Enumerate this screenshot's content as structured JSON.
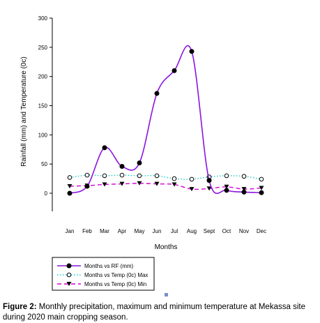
{
  "chart_data": {
    "type": "line",
    "categories": [
      "Jan",
      "Feb",
      "Mar",
      "Apr",
      "May",
      "Jun",
      "Jul",
      "Aug",
      "Sept",
      "Oct",
      "Nov",
      "Dec"
    ],
    "xlabel": "Months",
    "ylabel": "Rainfall (mm) and Temperature (0c)",
    "ylim": [
      0,
      300
    ],
    "yticks": [
      0,
      50,
      100,
      150,
      200,
      250,
      300
    ],
    "grid": false,
    "legend_position": "bottom-left",
    "series": [
      {
        "name": "Months vs RF (mm)",
        "color": "#8a14e0",
        "dash": "solid",
        "marker": "filled-circle",
        "values": [
          0,
          12,
          78,
          46,
          52,
          171,
          210,
          243,
          22,
          5,
          2,
          1
        ]
      },
      {
        "name": "Months vs Temp (0c) Max",
        "color": "#1fc7c7",
        "dash": "dotted",
        "marker": "open-circle",
        "values": [
          27,
          31,
          30,
          31,
          30,
          30,
          25,
          24,
          28,
          30,
          29,
          24
        ]
      },
      {
        "name": "Months vs Temp (0c) Min",
        "color": "#d400d4",
        "dash": "dashed",
        "marker": "down-triangle",
        "values": [
          12,
          13,
          15,
          16,
          17,
          16,
          15,
          7,
          8,
          11,
          7,
          9
        ]
      }
    ]
  },
  "caption": {
    "label": "Figure 2:",
    "text": " Monthly precipitation, maximum and minimum temperature at Mekassa site during 2020 main cropping season."
  }
}
